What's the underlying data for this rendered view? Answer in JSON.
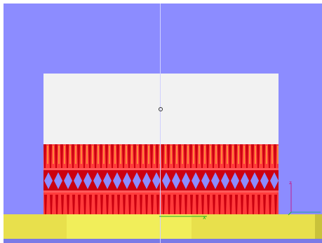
{
  "viewport": {
    "background_color": "#8c8cff",
    "part_top_color": "#f2f2f2",
    "lattice_color": "#ff3b3b",
    "lattice_dark_color": "#cc0010",
    "highlight_color": "#ffd23a",
    "plate_color": "#e8e04c"
  },
  "axes": {
    "z_label": "z",
    "x_label": "x",
    "y_label": "y",
    "z_color": "#c0208f",
    "x_color": "#20b020",
    "y_color": "#20a0a0"
  },
  "icons": {
    "pivot": "pivot-marker-icon",
    "gizmo": "axis-gizmo-icon"
  }
}
